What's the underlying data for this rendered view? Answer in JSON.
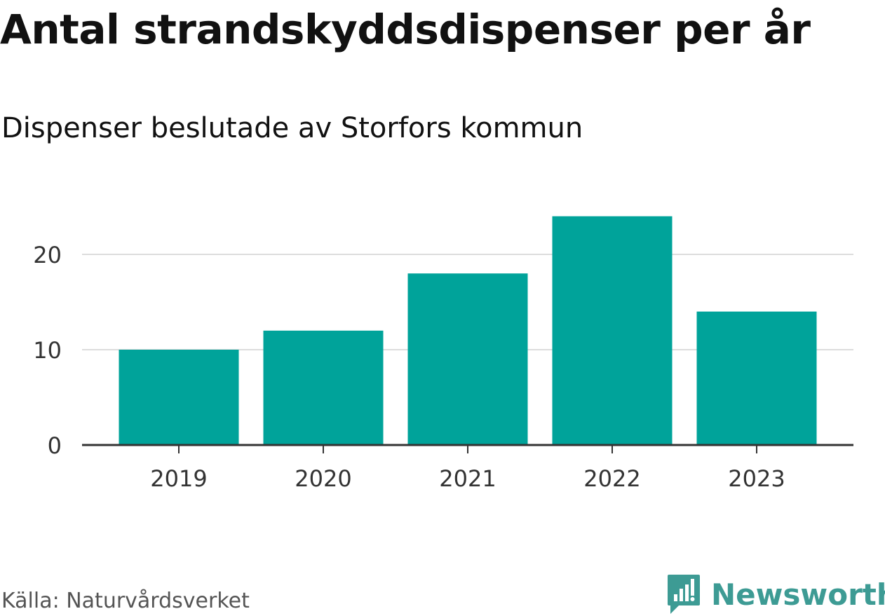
{
  "chart_data": {
    "type": "bar",
    "title": "Antal strandskyddsdispenser per år",
    "subtitle": "Dispenser beslutade av Storfors kommun",
    "categories": [
      "2019",
      "2020",
      "2021",
      "2022",
      "2023"
    ],
    "values": [
      10,
      12,
      18,
      24,
      14
    ],
    "xlabel": "",
    "ylabel": "",
    "ylim": [
      0,
      24
    ],
    "yticks": [
      "0",
      "10",
      "20"
    ],
    "grid": true,
    "bar_color": "#00a39a"
  },
  "footer": {
    "source": "Källa: Naturvårdsverket",
    "brand": "Newsworthy",
    "brand_color": "#3d9b94",
    "brand_icon": "newsworthy-logo-icon"
  }
}
